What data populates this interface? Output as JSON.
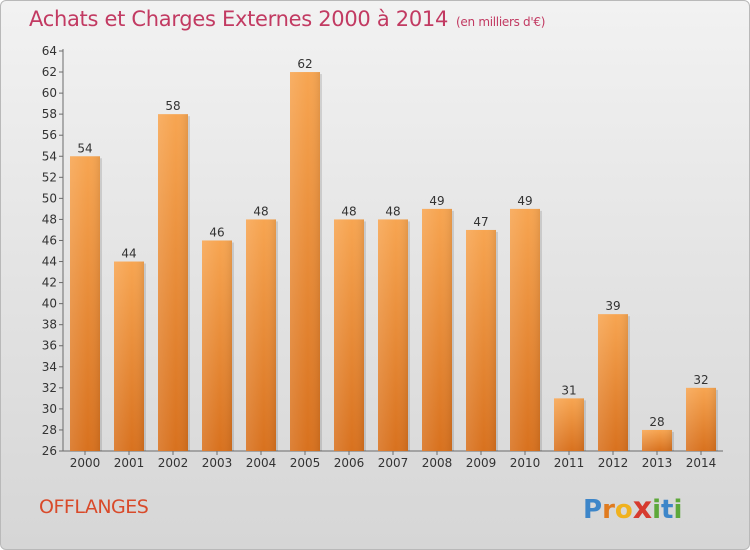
{
  "title": "Achats et Charges Externes 2000 à 2014",
  "unit": "(en milliers d'€)",
  "commune": "OFFLANGES",
  "logo": [
    "P",
    "r",
    "o",
    "x",
    "i",
    "t",
    "i"
  ],
  "colors": {
    "title": "#c23a62",
    "bar_top": "#f7a551",
    "bar_bottom": "#d8711e",
    "commune": "#d94a2a",
    "logo": [
      "#3d86c9",
      "#e07b1f",
      "#f0b21f",
      "#d63b2f",
      "#5da83a",
      "#3d86c9",
      "#5da83a"
    ]
  },
  "chart_data": {
    "type": "bar",
    "title": "Achats et Charges Externes 2000 à 2014",
    "subtitle": "(en milliers d'€)",
    "categories": [
      "2000",
      "2001",
      "2002",
      "2003",
      "2004",
      "2005",
      "2006",
      "2007",
      "2008",
      "2009",
      "2010",
      "2011",
      "2012",
      "2013",
      "2014"
    ],
    "values": [
      54,
      44,
      58,
      46,
      48,
      62,
      48,
      48,
      49,
      47,
      49,
      31,
      39,
      28,
      32
    ],
    "ylim": [
      26,
      64
    ],
    "yticks": [
      26,
      28,
      30,
      32,
      34,
      36,
      38,
      40,
      42,
      44,
      46,
      48,
      50,
      52,
      54,
      56,
      58,
      60,
      62,
      64
    ],
    "xlabel": "",
    "ylabel": "",
    "grid": false,
    "legend": "none"
  }
}
